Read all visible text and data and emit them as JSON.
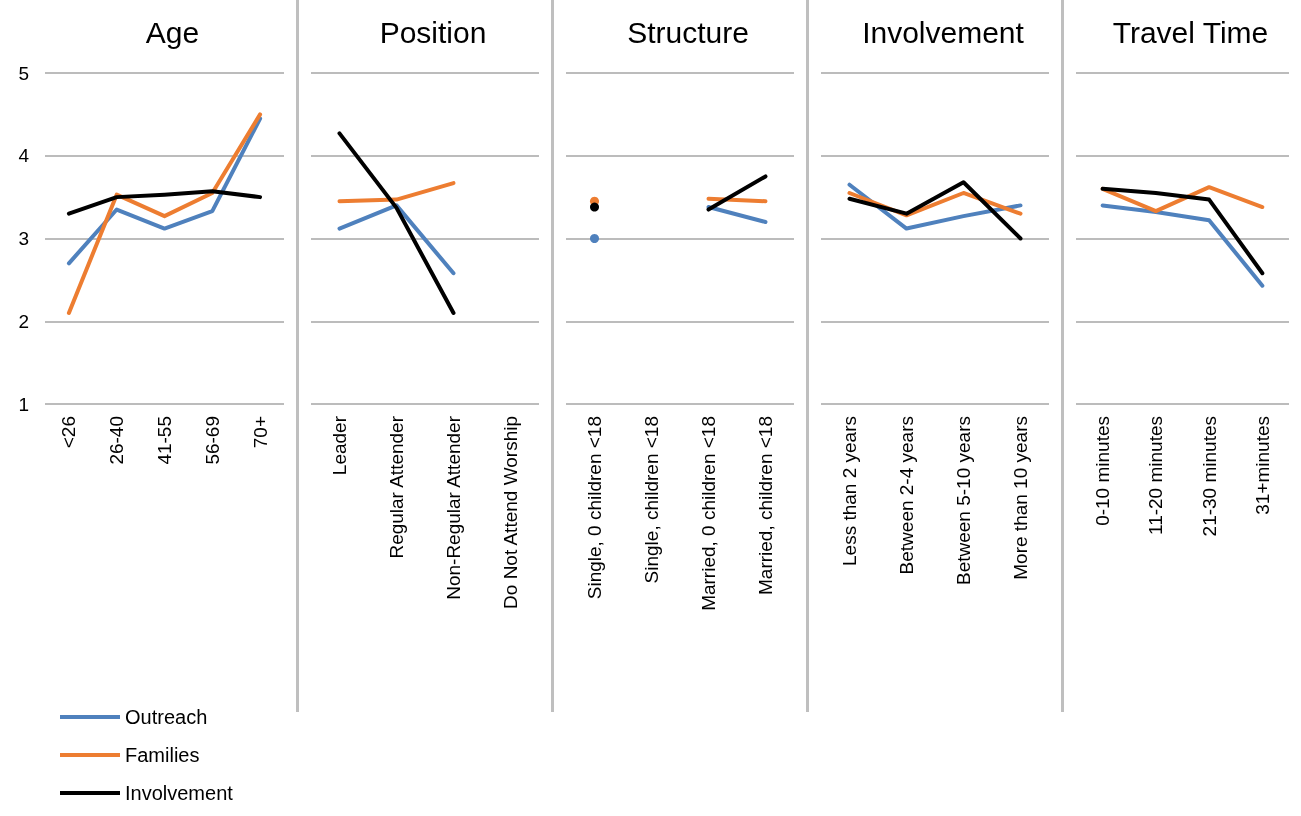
{
  "chart_data": [
    {
      "type": "line",
      "title": "Age",
      "categories": [
        "<26",
        "26-40",
        "41-55",
        "56-69",
        "70+"
      ],
      "ylim": [
        1,
        5
      ],
      "yticks": [
        1,
        2,
        3,
        4,
        5
      ],
      "grid": "y",
      "legend": "bottom left",
      "marker": "none",
      "series": [
        {
          "name": "Outreach",
          "color": "#4f81bd",
          "values": [
            2.7,
            3.35,
            3.12,
            3.33,
            4.45
          ]
        },
        {
          "name": "Families",
          "color": "#ed7d31",
          "values": [
            2.1,
            3.53,
            3.27,
            3.55,
            4.5
          ]
        },
        {
          "name": "Involvement",
          "color": "#000000",
          "values": [
            3.3,
            3.5,
            3.53,
            3.57,
            3.5
          ]
        }
      ]
    },
    {
      "type": "line",
      "title": "Position",
      "categories": [
        "Leader",
        "Regular Attender",
        "Non-Regular Attender",
        "Do Not Attend Worship"
      ],
      "ylim": [
        1,
        5
      ],
      "yticks": [
        1,
        2,
        3,
        4,
        5
      ],
      "grid": "y",
      "tick_labels": "x",
      "marker": "none",
      "series": [
        {
          "color": "#4f81bd",
          "values": [
            3.12,
            3.4,
            2.58,
            null
          ]
        },
        {
          "color": "#ed7d31",
          "values": [
            3.45,
            3.47,
            3.67,
            null
          ]
        },
        {
          "color": "#000000",
          "values": [
            4.27,
            3.37,
            2.1,
            null
          ]
        }
      ]
    },
    {
      "type": "line",
      "title": "Structure",
      "categories": [
        "Single, 0 children <18",
        "Single, children <18",
        "Married, 0 children <18",
        "Married, children <18"
      ],
      "ylim": [
        1,
        5
      ],
      "yticks": [
        1,
        2,
        3,
        4,
        5
      ],
      "grid": "y",
      "tick_labels": "x",
      "marker": "none",
      "series": [
        {
          "color": "#4f81bd",
          "values": [
            3.0,
            null,
            3.38,
            3.2
          ]
        },
        {
          "color": "#ed7d31",
          "values": [
            3.45,
            null,
            3.48,
            3.45
          ]
        },
        {
          "color": "#000000",
          "values": [
            3.38,
            null,
            3.35,
            3.75
          ]
        }
      ]
    },
    {
      "type": "line",
      "title": "Involvement",
      "categories": [
        "Less than 2 years",
        "Between 2-4 years",
        "Between 5-10 years",
        "More than 10 years"
      ],
      "ylim": [
        1,
        5
      ],
      "yticks": [
        1,
        2,
        3,
        4,
        5
      ],
      "grid": "y",
      "tick_labels": "x",
      "marker": "none",
      "series": [
        {
          "color": "#4f81bd",
          "values": [
            3.65,
            3.12,
            3.27,
            3.4
          ]
        },
        {
          "color": "#ed7d31",
          "values": [
            3.55,
            3.28,
            3.55,
            3.3
          ]
        },
        {
          "color": "#000000",
          "values": [
            3.48,
            3.3,
            3.68,
            3.0
          ]
        }
      ]
    },
    {
      "type": "line",
      "title": "Travel Time",
      "categories": [
        "0-10 minutes",
        "11-20 minutes",
        "21-30 minutes",
        "31+minutes"
      ],
      "ylim": [
        1,
        5
      ],
      "yticks": [
        1,
        2,
        3,
        4,
        5
      ],
      "grid": "y",
      "tick_labels": "x",
      "marker": "none",
      "series": [
        {
          "color": "#4f81bd",
          "values": [
            3.4,
            3.32,
            3.22,
            2.43
          ]
        },
        {
          "color": "#ed7d31",
          "values": [
            3.6,
            3.33,
            3.62,
            3.38
          ]
        },
        {
          "color": "#000000",
          "values": [
            3.6,
            3.55,
            3.47,
            2.58
          ]
        }
      ]
    }
  ]
}
